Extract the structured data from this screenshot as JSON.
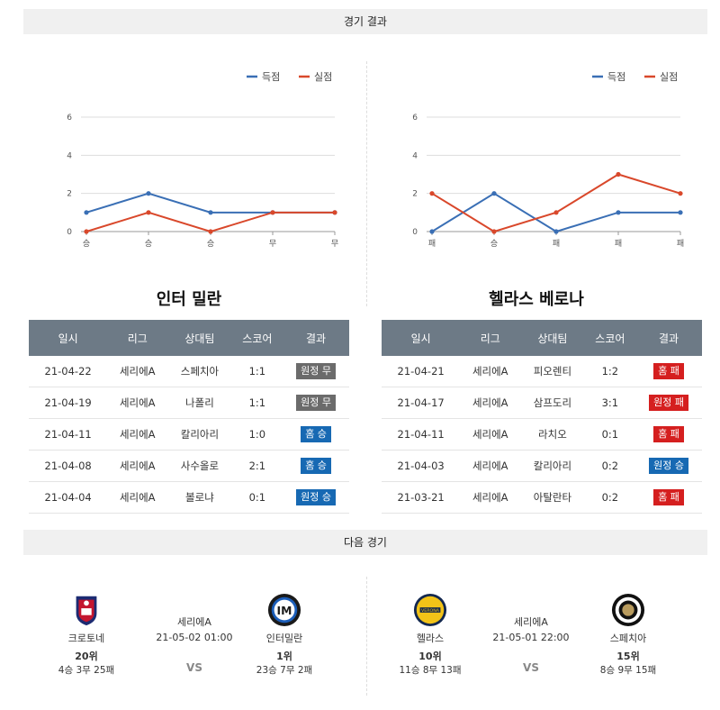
{
  "header_title": "경기 결과",
  "next_title": "다음 경기",
  "legend": {
    "scored": "득점",
    "conceded": "실점"
  },
  "colors": {
    "scored": "#3a6fb5",
    "conceded": "#d9482b"
  },
  "chart_data": [
    {
      "type": "line",
      "categories": [
        "승",
        "승",
        "승",
        "무",
        "무"
      ],
      "series": [
        {
          "name": "득점",
          "values": [
            1,
            2,
            1,
            1,
            1
          ]
        },
        {
          "name": "실점",
          "values": [
            0,
            1,
            0,
            1,
            1
          ]
        }
      ],
      "yticks": [
        0,
        2,
        4,
        6
      ],
      "ylim": [
        0,
        6
      ],
      "grid": true,
      "legend_position": "top-right"
    },
    {
      "type": "line",
      "categories": [
        "패",
        "승",
        "패",
        "패",
        "패"
      ],
      "series": [
        {
          "name": "득점",
          "values": [
            0,
            2,
            0,
            1,
            1
          ]
        },
        {
          "name": "실점",
          "values": [
            2,
            0,
            1,
            3,
            2
          ]
        }
      ],
      "yticks": [
        0,
        2,
        4,
        6
      ],
      "ylim": [
        0,
        6
      ],
      "grid": true,
      "legend_position": "top-right"
    }
  ],
  "teams": [
    {
      "name": "인터 밀란",
      "headers": [
        "일시",
        "리그",
        "상대팀",
        "스코어",
        "결과"
      ],
      "rows": [
        {
          "date": "21-04-22",
          "league": "세리에A",
          "opponent": "스페치아",
          "score": "1:1",
          "result": "원정 무",
          "type": "draw"
        },
        {
          "date": "21-04-19",
          "league": "세리에A",
          "opponent": "나폴리",
          "score": "1:1",
          "result": "원정 무",
          "type": "draw"
        },
        {
          "date": "21-04-11",
          "league": "세리에A",
          "opponent": "칼리아리",
          "score": "1:0",
          "result": "홈 승",
          "type": "win"
        },
        {
          "date": "21-04-08",
          "league": "세리에A",
          "opponent": "사수올로",
          "score": "2:1",
          "result": "홈 승",
          "type": "win"
        },
        {
          "date": "21-04-04",
          "league": "세리에A",
          "opponent": "볼로냐",
          "score": "0:1",
          "result": "원정 승",
          "type": "win"
        }
      ]
    },
    {
      "name": "헬라스 베로나",
      "headers": [
        "일시",
        "리그",
        "상대팀",
        "스코어",
        "결과"
      ],
      "rows": [
        {
          "date": "21-04-21",
          "league": "세리에A",
          "opponent": "피오렌티",
          "score": "1:2",
          "result": "홈 패",
          "type": "loss"
        },
        {
          "date": "21-04-17",
          "league": "세리에A",
          "opponent": "삼프도리",
          "score": "3:1",
          "result": "원정 패",
          "type": "loss"
        },
        {
          "date": "21-04-11",
          "league": "세리에A",
          "opponent": "라치오",
          "score": "0:1",
          "result": "홈 패",
          "type": "loss"
        },
        {
          "date": "21-04-03",
          "league": "세리에A",
          "opponent": "칼리아리",
          "score": "0:2",
          "result": "원정 승",
          "type": "win"
        },
        {
          "date": "21-03-21",
          "league": "세리에A",
          "opponent": "아탈란타",
          "score": "0:2",
          "result": "홈 패",
          "type": "loss"
        }
      ]
    }
  ],
  "matches": [
    {
      "home": {
        "name": "크로토네",
        "rank": "20위",
        "record": "4승 3무 25패",
        "logo": "crotone-logo"
      },
      "league": "세리에A",
      "datetime": "21-05-02 01:00",
      "vs": "VS",
      "away": {
        "name": "인터밀란",
        "rank": "1위",
        "record": "23승 7무 2패",
        "logo": "inter-logo"
      }
    },
    {
      "home": {
        "name": "헬라스",
        "rank": "10위",
        "record": "11승 8무 13패",
        "logo": "verona-logo"
      },
      "league": "세리에A",
      "datetime": "21-05-01 22:00",
      "vs": "VS",
      "away": {
        "name": "스페치아",
        "rank": "15위",
        "record": "8승 9무 15패",
        "logo": "spezia-logo"
      }
    }
  ]
}
